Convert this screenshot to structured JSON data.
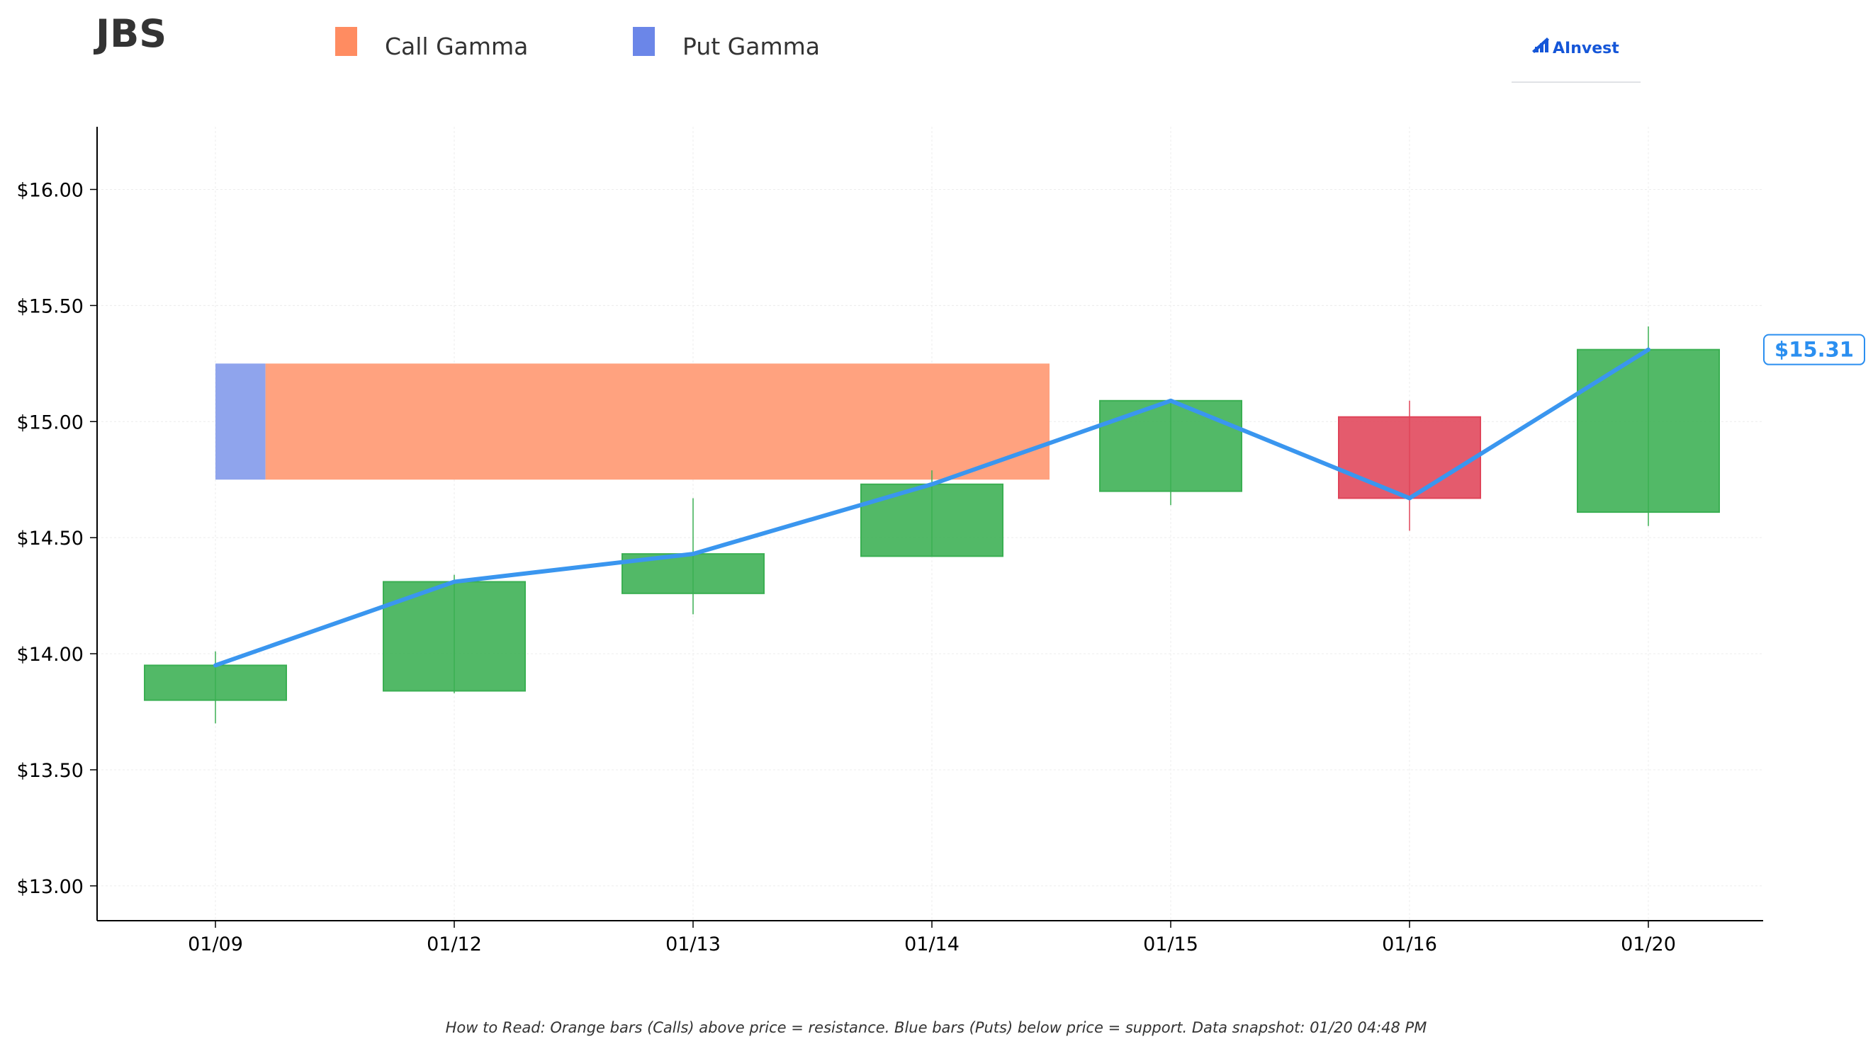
{
  "ticker": "JBS",
  "legend": {
    "call_label": "Call Gamma",
    "put_label": "Put Gamma",
    "call_color": "#ff8c61",
    "put_color": "#6b86e8"
  },
  "logo": {
    "text": "AInvest",
    "icon": "ainvest-logo-icon",
    "color": "#1556d8"
  },
  "price_badge": "$15.31",
  "footer_note": "How to Read: Orange bars (Calls) above price = resistance. Blue bars (Puts) below price = support. Data snapshot: 01/20 04:48 PM",
  "colors": {
    "up": "#3aaf52",
    "down": "#e04459",
    "close_line": "#3a96ef",
    "call_band": "#ffa27f",
    "put_band": "#8fa4ed"
  },
  "chart_data": {
    "type": "candlestick",
    "title": "JBS",
    "x": [
      "01/09",
      "01/12",
      "01/13",
      "01/14",
      "01/15",
      "01/16",
      "01/20"
    ],
    "ylim": [
      12.85,
      16.27
    ],
    "yticks": [
      13.0,
      13.5,
      14.0,
      14.5,
      15.0,
      15.5,
      16.0
    ],
    "ytick_labels": [
      "$13.00",
      "$13.50",
      "$14.00",
      "$14.50",
      "$15.00",
      "$15.50",
      "$16.00"
    ],
    "grid": true,
    "candles": [
      {
        "date": "01/09",
        "open": 13.8,
        "high": 14.01,
        "low": 13.7,
        "close": 13.95
      },
      {
        "date": "01/12",
        "open": 13.84,
        "high": 14.34,
        "low": 13.83,
        "close": 14.31
      },
      {
        "date": "01/13",
        "open": 14.26,
        "high": 14.67,
        "low": 14.17,
        "close": 14.43
      },
      {
        "date": "01/14",
        "open": 14.42,
        "high": 14.79,
        "low": 14.42,
        "close": 14.73
      },
      {
        "date": "01/15",
        "open": 14.7,
        "high": 15.09,
        "low": 14.64,
        "close": 15.09
      },
      {
        "date": "01/16",
        "open": 15.02,
        "high": 15.09,
        "low": 14.53,
        "close": 14.67
      },
      {
        "date": "01/20",
        "open": 14.61,
        "high": 15.41,
        "low": 14.55,
        "close": 15.31
      }
    ],
    "close_line": [
      13.95,
      14.31,
      14.43,
      14.73,
      15.09,
      14.67,
      15.31
    ],
    "gamma_levels": [
      {
        "price_low": 14.75,
        "price_high": 15.25,
        "put_relative": 0.06,
        "call_relative": 1.0
      }
    ],
    "last_price": 15.31
  }
}
